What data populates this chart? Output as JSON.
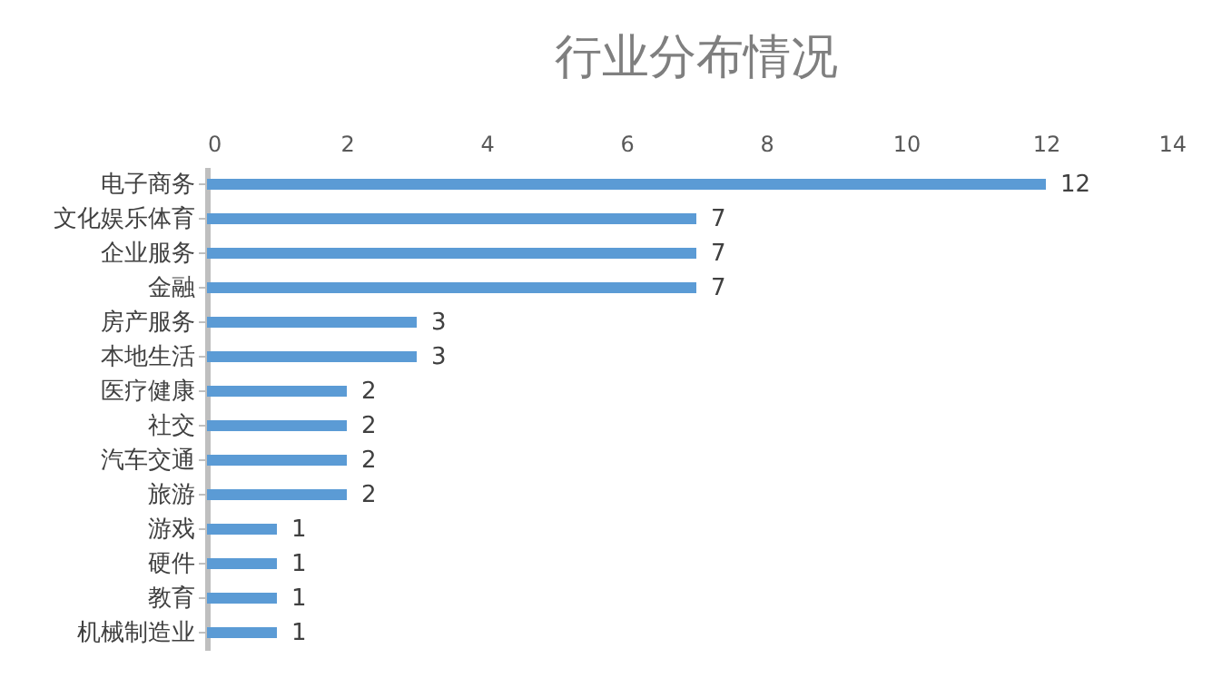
{
  "chart_data": {
    "type": "bar",
    "orientation": "horizontal",
    "title": "行业分布情况",
    "categories": [
      "电子商务",
      "文化娱乐体育",
      "企业服务",
      "金融",
      "房产服务",
      "本地生活",
      "医疗健康",
      "社交",
      "汽车交通",
      "旅游",
      "游戏",
      "硬件",
      "教育",
      "机械制造业"
    ],
    "values": [
      12,
      7,
      7,
      7,
      3,
      3,
      2,
      2,
      2,
      2,
      1,
      1,
      1,
      1
    ],
    "color": "#5b9bd5",
    "xlim": [
      0,
      14
    ],
    "xticks": [
      0,
      2,
      4,
      6,
      8,
      10,
      12,
      14
    ],
    "grid": false,
    "data_labels": true
  }
}
